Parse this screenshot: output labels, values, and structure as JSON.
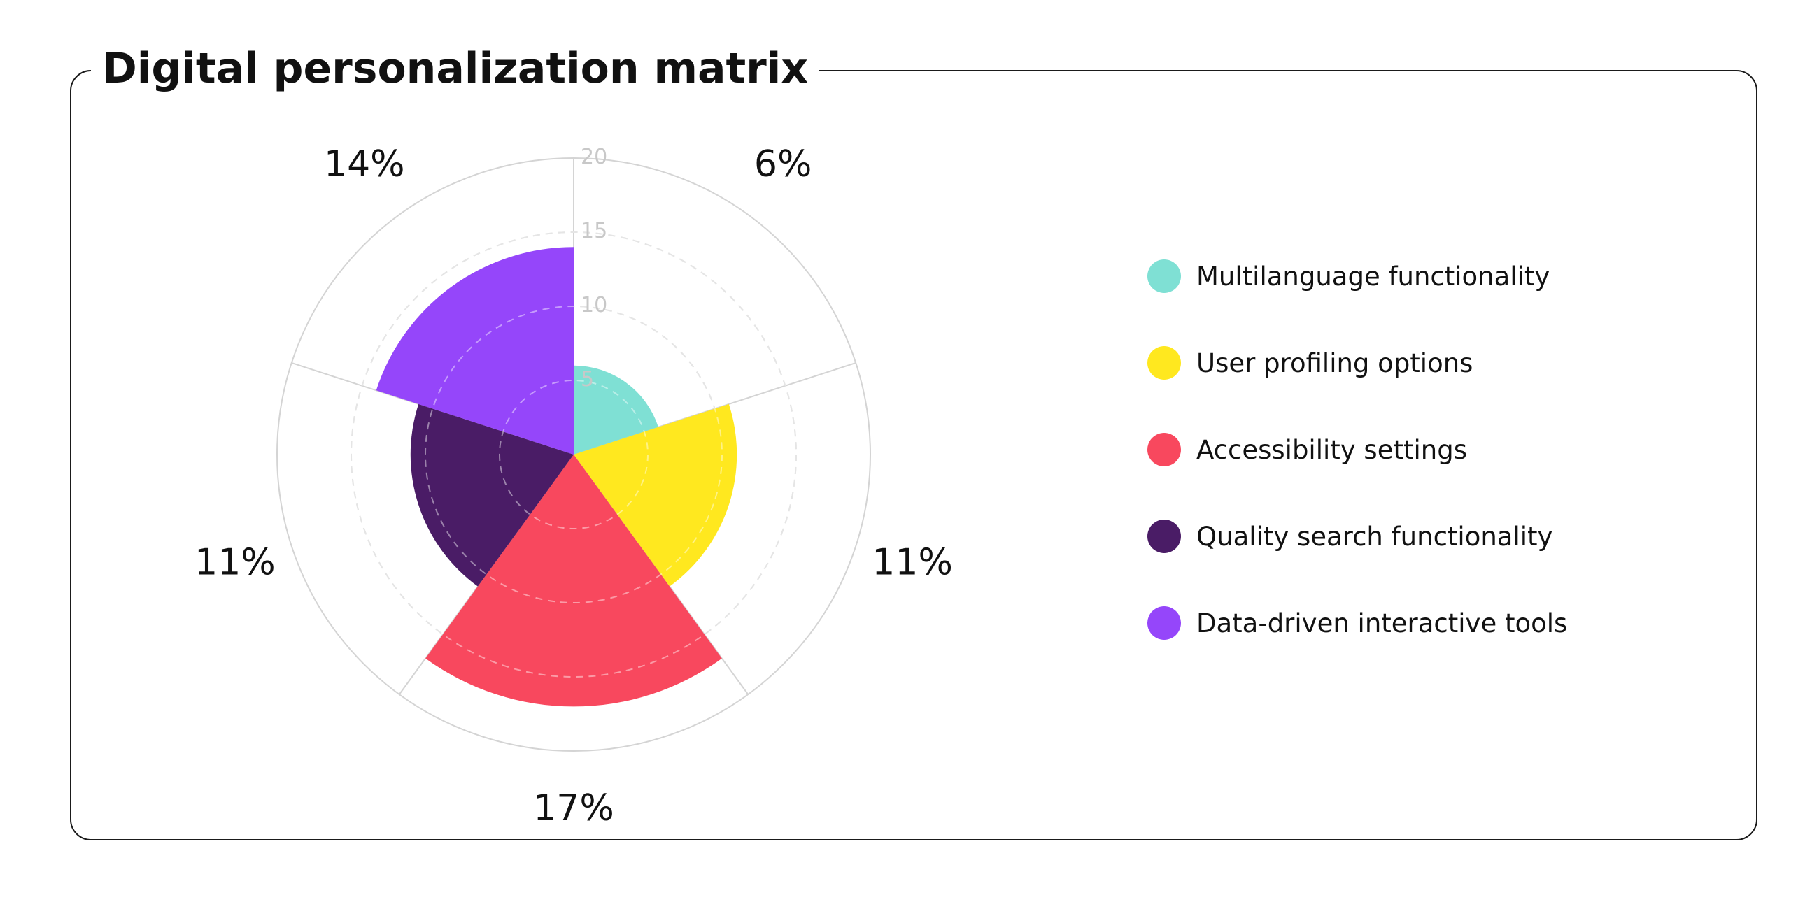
{
  "title": "Digital personalization matrix",
  "chart_data": {
    "type": "polar-area",
    "title": "Digital personalization matrix",
    "rmax": 20,
    "radial_ticks": [
      5,
      10,
      15,
      20
    ],
    "radial_tick_labels": [
      "5",
      "10",
      "15",
      "20"
    ],
    "categories": [
      "Multilanguage functionality",
      "User profiling options",
      "Accessibility settings",
      "Quality search functionality",
      "Data-driven interactive tools"
    ],
    "values": [
      6,
      11,
      17,
      11,
      14
    ],
    "value_labels": [
      "6%",
      "11%",
      "17%",
      "11%",
      "14%"
    ],
    "colors": [
      "#7fe0d4",
      "#ffe81f",
      "#f8485e",
      "#4a1c66",
      "#9546fa"
    ],
    "legend_position": "right",
    "grid": true
  }
}
